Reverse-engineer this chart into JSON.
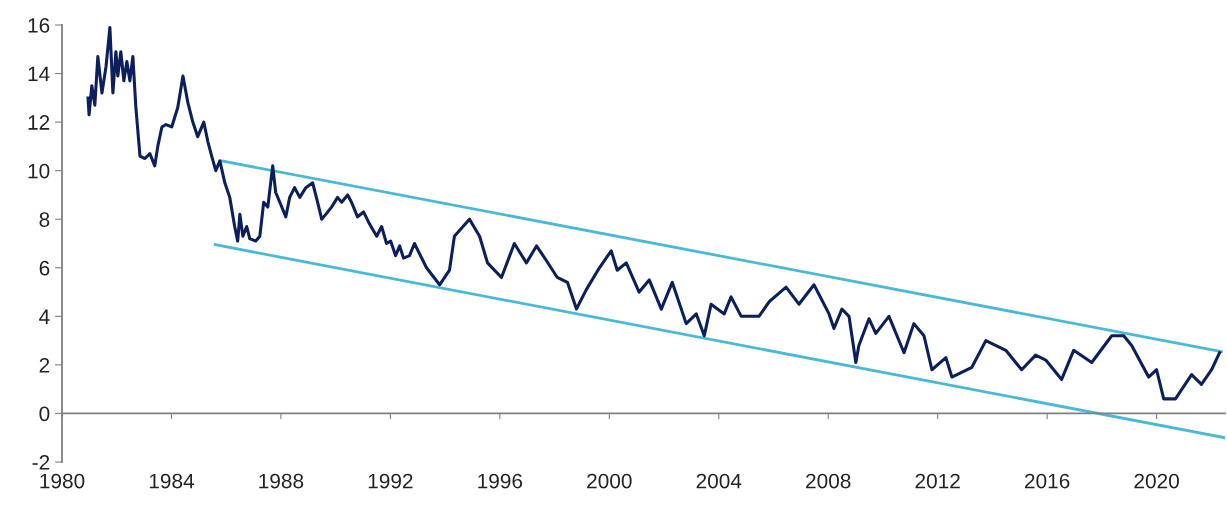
{
  "chart_data": {
    "type": "line",
    "xlim": [
      1980,
      2022.5
    ],
    "ylim": [
      -2,
      16
    ],
    "xticks": [
      1980,
      1984,
      1988,
      1992,
      1996,
      2000,
      2004,
      2008,
      2012,
      2016,
      2020
    ],
    "yticks": [
      -2,
      0,
      2,
      4,
      6,
      8,
      10,
      12,
      14,
      16
    ],
    "legend": false,
    "marker": "none",
    "line_style": "solid",
    "series": [
      {
        "color": "#0b1f5c",
        "x": [
          1980.95,
          1980.99,
          1981.09,
          1981.2,
          1981.31,
          1981.46,
          1981.61,
          1981.75,
          1981.86,
          1981.97,
          1982.04,
          1982.15,
          1982.26,
          1982.37,
          1982.48,
          1982.59,
          1982.7,
          1982.85,
          1983.03,
          1983.21,
          1983.39,
          1983.5,
          1983.65,
          1983.8,
          1984.01,
          1984.23,
          1984.42,
          1984.6,
          1984.78,
          1984.96,
          1985.18,
          1985.33,
          1985.47,
          1985.62,
          1985.77,
          1985.95,
          1986.13,
          1986.31,
          1986.42,
          1986.5,
          1986.61,
          1986.75,
          1986.86,
          1987.08,
          1987.23,
          1987.37,
          1987.52,
          1987.7,
          1987.81,
          1987.96,
          1988.18,
          1988.32,
          1988.5,
          1988.69,
          1988.91,
          1989.16,
          1989.34,
          1989.49,
          1989.64,
          1989.85,
          1990.07,
          1990.22,
          1990.44,
          1990.58,
          1990.8,
          1991.02,
          1991.24,
          1991.5,
          1991.68,
          1991.86,
          1992.01,
          1992.19,
          1992.34,
          1992.48,
          1992.7,
          1992.88,
          1993.32,
          1993.8,
          1994.16,
          1994.34,
          1994.89,
          1995.26,
          1995.55,
          1996.06,
          1996.53,
          1996.97,
          1997.34,
          1997.7,
          1998.1,
          1998.47,
          1998.8,
          1999.16,
          1999.64,
          2000.07,
          2000.29,
          2000.62,
          2001.09,
          2001.46,
          2001.9,
          2002.3,
          2002.81,
          2003.18,
          2003.47,
          2003.72,
          2004.2,
          2004.45,
          2004.82,
          2005.47,
          2005.84,
          2006.46,
          2006.93,
          2007.48,
          2008.03,
          2008.21,
          2008.5,
          2008.76,
          2009.01,
          2009.12,
          2009.49,
          2009.74,
          2010.22,
          2010.77,
          2011.13,
          2011.5,
          2011.79,
          2012.3,
          2012.52,
          2013.25,
          2013.76,
          2014.49,
          2015.07,
          2015.58,
          2015.95,
          2016.53,
          2016.97,
          2017.63,
          2018.36,
          2018.8,
          2019.09,
          2019.71,
          2020.0,
          2020.26,
          2020.69,
          2021.28,
          2021.64,
          2022.01,
          2022.3
        ],
        "values": [
          13.0,
          12.3,
          13.5,
          12.7,
          14.7,
          13.2,
          14.3,
          15.9,
          13.2,
          14.9,
          13.9,
          14.9,
          13.7,
          14.5,
          13.7,
          14.7,
          12.6,
          10.6,
          10.5,
          10.7,
          10.2,
          11.0,
          11.8,
          11.9,
          11.8,
          12.6,
          13.9,
          12.8,
          12.0,
          11.4,
          12.0,
          11.2,
          10.6,
          10.0,
          10.4,
          9.5,
          8.9,
          7.7,
          7.1,
          8.2,
          7.3,
          7.7,
          7.2,
          7.1,
          7.3,
          8.7,
          8.5,
          10.2,
          9.1,
          8.7,
          8.1,
          8.9,
          9.3,
          8.9,
          9.3,
          9.5,
          8.7,
          8.0,
          8.2,
          8.5,
          8.9,
          8.7,
          9.0,
          8.7,
          8.1,
          8.3,
          7.8,
          7.3,
          7.7,
          7.0,
          7.1,
          6.5,
          6.9,
          6.4,
          6.5,
          7.0,
          6.0,
          5.3,
          5.9,
          7.3,
          8.0,
          7.3,
          6.2,
          5.6,
          7.0,
          6.2,
          6.9,
          6.3,
          5.6,
          5.4,
          4.3,
          5.1,
          6.0,
          6.7,
          5.9,
          6.2,
          5.0,
          5.5,
          4.3,
          5.4,
          3.7,
          4.1,
          3.2,
          4.5,
          4.1,
          4.8,
          4.0,
          4.0,
          4.6,
          5.2,
          4.5,
          5.3,
          4.1,
          3.5,
          4.3,
          4.0,
          2.1,
          2.8,
          3.9,
          3.3,
          4.0,
          2.5,
          3.7,
          3.2,
          1.8,
          2.3,
          1.5,
          1.9,
          3.0,
          2.6,
          1.8,
          2.4,
          2.2,
          1.4,
          2.6,
          2.1,
          3.2,
          3.2,
          2.8,
          1.5,
          1.8,
          0.6,
          0.6,
          1.6,
          1.2,
          1.8,
          2.5
        ]
      },
      {
        "type": "line",
        "color": "#4ab8d8",
        "x": [
          1985.84,
          2022.37
        ],
        "values": [
          10.4,
          2.55
        ]
      },
      {
        "type": "line",
        "color": "#4ab8d8",
        "x": [
          1985.6,
          2022.5
        ],
        "values": [
          6.95,
          -1.0
        ]
      }
    ]
  }
}
